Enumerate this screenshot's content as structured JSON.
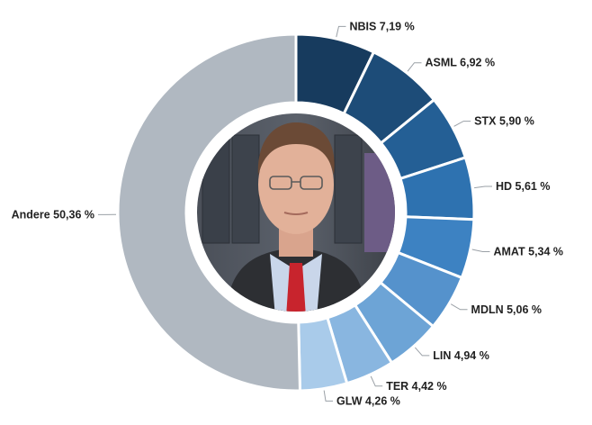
{
  "chart_data": {
    "type": "pie",
    "variant": "donut",
    "title": "",
    "center_image": "portrait-photo",
    "slices": [
      {
        "label": "NBIS 7,19 %",
        "value": 7.19,
        "color": "#173b5e"
      },
      {
        "label": "ASML 6,92 %",
        "value": 6.92,
        "color": "#1d4c78"
      },
      {
        "label": "STX 5,90 %",
        "value": 5.9,
        "color": "#245f95"
      },
      {
        "label": "HD 5,61 %",
        "value": 5.61,
        "color": "#2e72b0"
      },
      {
        "label": "AMAT 5,34 %",
        "value": 5.34,
        "color": "#3d82c2"
      },
      {
        "label": "MDLN 5,06 %",
        "value": 5.06,
        "color": "#5592cc"
      },
      {
        "label": "LIN 4,94 %",
        "value": 4.94,
        "color": "#6da4d6"
      },
      {
        "label": "TER 4,42 %",
        "value": 4.42,
        "color": "#89b6e0"
      },
      {
        "label": "GLW 4,26 %",
        "value": 4.26,
        "color": "#a9cbea"
      },
      {
        "label": "Andere 50,36 %",
        "value": 50.36,
        "color": "#b0b8c1"
      }
    ]
  }
}
